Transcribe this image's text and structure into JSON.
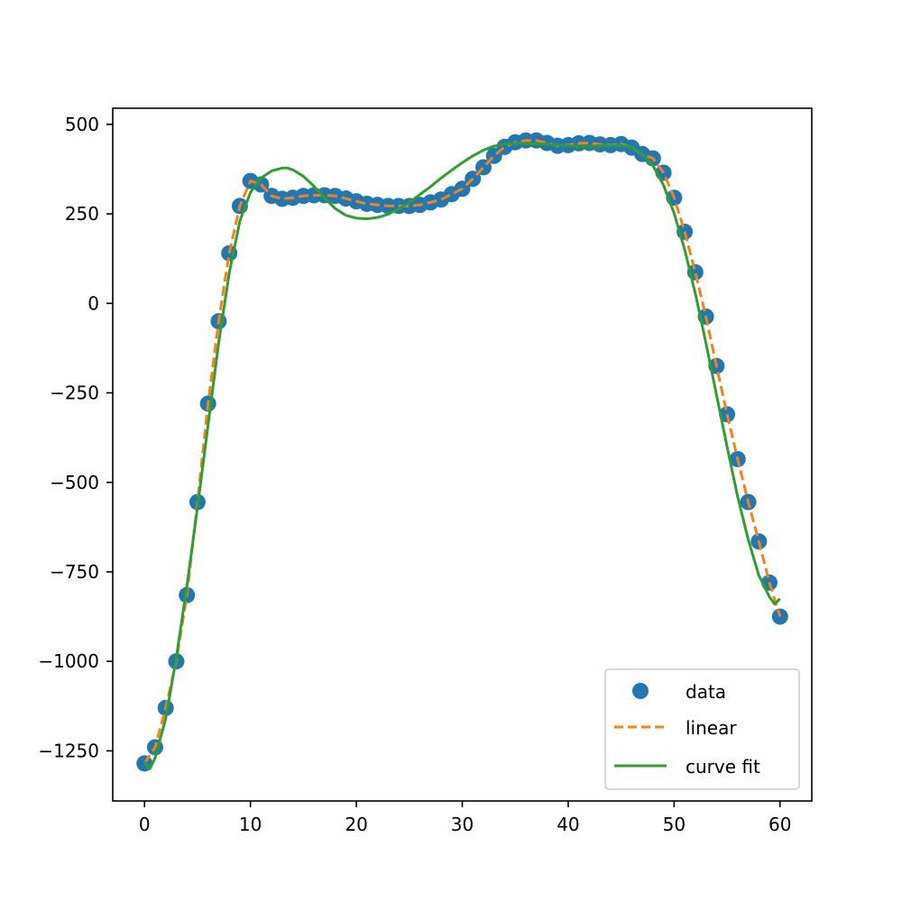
{
  "chart_data": {
    "type": "line",
    "title": "",
    "xlabel": "",
    "ylabel": "",
    "xlim": [
      -3,
      63
    ],
    "ylim": [
      -1390,
      545
    ],
    "xticks": [
      0,
      10,
      20,
      30,
      40,
      50,
      60
    ],
    "yticks": [
      500,
      250,
      0,
      -250,
      -500,
      -750,
      -1000,
      -1250
    ],
    "xtick_labels": [
      "0",
      "10",
      "20",
      "30",
      "40",
      "50",
      "60"
    ],
    "ytick_labels": [
      "500",
      "250",
      "0",
      "−250",
      "−500",
      "−750",
      "−1000",
      "−1250"
    ],
    "grid": false,
    "legend": {
      "position": "lower right"
    },
    "series": [
      {
        "name": "data",
        "kind": "scatter",
        "color": "#1f77b4",
        "x": [
          0,
          1,
          2,
          3,
          4,
          5,
          6,
          7,
          8,
          9,
          10,
          11,
          12,
          13,
          14,
          15,
          16,
          17,
          18,
          19,
          20,
          21,
          22,
          23,
          24,
          25,
          26,
          27,
          28,
          29,
          30,
          31,
          32,
          33,
          34,
          35,
          36,
          37,
          38,
          39,
          40,
          41,
          42,
          43,
          44,
          45,
          46,
          47,
          48,
          49,
          50,
          51,
          52,
          53,
          54,
          55,
          56,
          57,
          58,
          59,
          60
        ],
        "y": [
          -1285,
          -1240,
          -1130,
          -1000,
          -815,
          -555,
          -280,
          -50,
          140,
          272,
          342,
          332,
          300,
          292,
          295,
          300,
          302,
          302,
          300,
          293,
          285,
          278,
          275,
          272,
          272,
          272,
          275,
          282,
          290,
          305,
          320,
          348,
          380,
          412,
          437,
          450,
          455,
          455,
          448,
          440,
          442,
          447,
          448,
          444,
          442,
          445,
          435,
          417,
          405,
          365,
          295,
          200,
          87,
          -37,
          -175,
          -310,
          -435,
          -555,
          -665,
          -780,
          -875
        ]
      },
      {
        "name": "linear",
        "kind": "line",
        "style": "dashed",
        "color": "#ff7f0e",
        "x": [
          0,
          1,
          2,
          3,
          4,
          5,
          6,
          7,
          8,
          9,
          10,
          11,
          12,
          13,
          14,
          15,
          16,
          17,
          18,
          19,
          20,
          21,
          22,
          23,
          24,
          25,
          26,
          27,
          28,
          29,
          30,
          31,
          32,
          33,
          34,
          35,
          36,
          37,
          38,
          39,
          40,
          41,
          42,
          43,
          44,
          45,
          46,
          47,
          48,
          49,
          50,
          51,
          52,
          53,
          54,
          55,
          56,
          57,
          58,
          59,
          60
        ],
        "y": [
          -1285,
          -1240,
          -1130,
          -1000,
          -815,
          -555,
          -280,
          -50,
          140,
          272,
          342,
          332,
          300,
          292,
          295,
          300,
          302,
          302,
          300,
          293,
          285,
          278,
          275,
          272,
          272,
          272,
          275,
          282,
          290,
          305,
          320,
          348,
          380,
          412,
          437,
          450,
          455,
          455,
          448,
          440,
          442,
          447,
          448,
          444,
          442,
          445,
          435,
          417,
          405,
          365,
          295,
          200,
          87,
          -37,
          -175,
          -310,
          -435,
          -555,
          -665,
          -780,
          -875
        ]
      },
      {
        "name": "curve fit",
        "kind": "line",
        "style": "solid",
        "color": "#2ca02c",
        "x": [
          0,
          0.5,
          1,
          2,
          3,
          4,
          5,
          6,
          7,
          8,
          9,
          10,
          11,
          12,
          13,
          13.5,
          14,
          15,
          16,
          17,
          18,
          19,
          20,
          21,
          22,
          22.5,
          23,
          24,
          25,
          26,
          27,
          28,
          29,
          30,
          31,
          32,
          33,
          34,
          35,
          36,
          37,
          38,
          39,
          40,
          41,
          42,
          43,
          44,
          45,
          46,
          47,
          48,
          49,
          50,
          51,
          52,
          53,
          54,
          55,
          56,
          57,
          58,
          59,
          59.5,
          60
        ],
        "y": [
          -1280,
          -1300,
          -1270,
          -1160,
          -990,
          -790,
          -570,
          -340,
          -110,
          85,
          230,
          310,
          350,
          370,
          378,
          378,
          373,
          355,
          327,
          294,
          265,
          246,
          238,
          236,
          240,
          244,
          249,
          264,
          282,
          304,
          326,
          350,
          372,
          393,
          412,
          428,
          439,
          445,
          447,
          447,
          446,
          444,
          442,
          440,
          439,
          439,
          440,
          441,
          441,
          436,
          418,
          385,
          330,
          252,
          150,
          28,
          -110,
          -255,
          -400,
          -540,
          -660,
          -760,
          -820,
          -840,
          -825
        ]
      }
    ]
  }
}
